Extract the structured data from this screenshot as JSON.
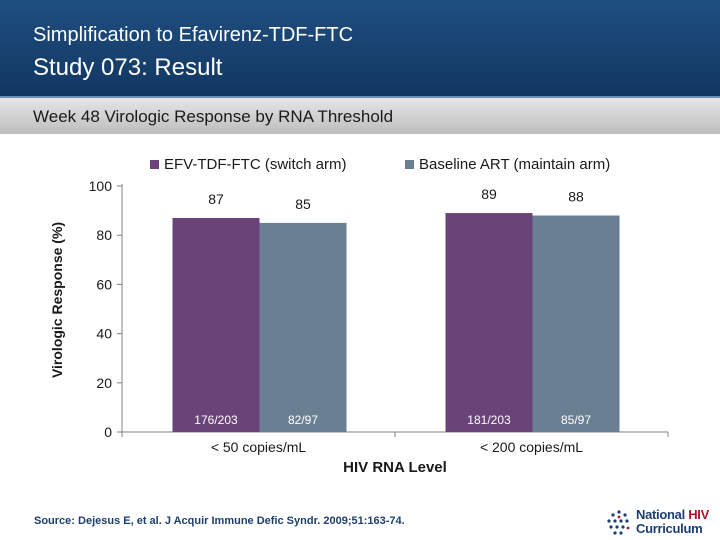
{
  "header": {
    "title": "Simplification to Efavirenz-TDF-FTC",
    "subtitle": "Study 073: Result",
    "section": "Week 48 Virologic Response by RNA Threshold"
  },
  "chart_data": {
    "type": "bar",
    "title": "Week 48 Virologic Response by RNA Threshold",
    "xlabel": "HIV RNA Level",
    "ylabel": "Virologic Response (%)",
    "ylim": [
      0,
      100
    ],
    "yticks": [
      0,
      20,
      40,
      60,
      80,
      100
    ],
    "categories": [
      "< 50 copies/mL",
      "< 200 copies/mL"
    ],
    "series": [
      {
        "name": "EFV-TDF-FTC (switch arm)",
        "color": "#6a4479",
        "values": [
          87,
          89
        ],
        "counts": [
          "176/203",
          "181/203"
        ]
      },
      {
        "name": "Baseline ART (maintain arm)",
        "color": "#6b7f93",
        "values": [
          85,
          88
        ],
        "counts": [
          "82/97",
          "85/97"
        ]
      }
    ],
    "legend": "top"
  },
  "footer": {
    "source": "Source: Dejesus E, et al. J Acquir Immune Defic Syndr. 2009;51:163-74.",
    "logo_line1_a": "National",
    "logo_line1_b": "HIV",
    "logo_line2": "Curriculum",
    "logo_icon": "globe-dots-icon"
  }
}
